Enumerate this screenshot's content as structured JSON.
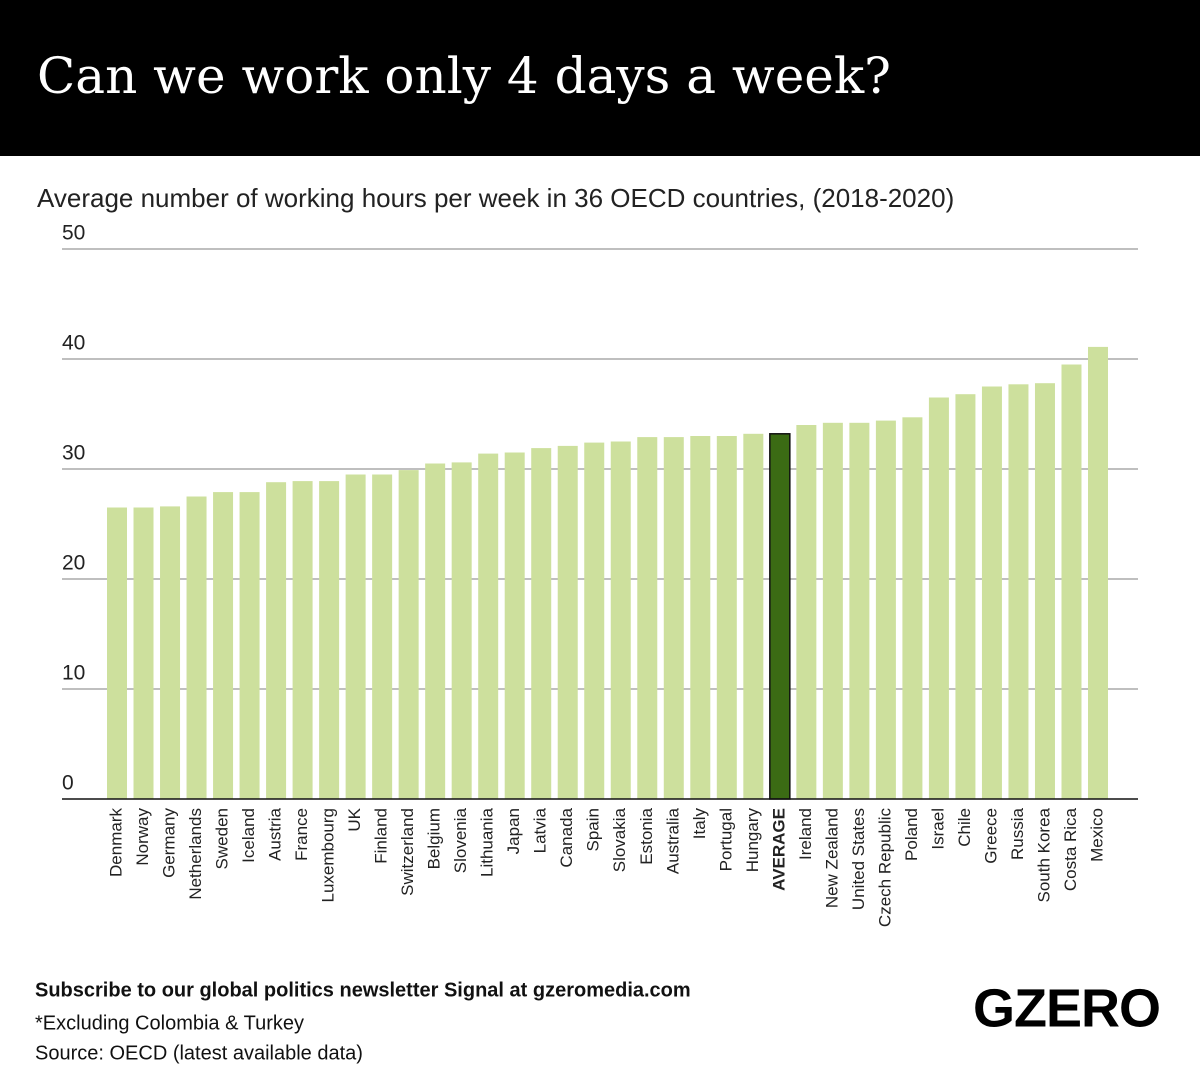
{
  "chart_data": {
    "type": "bar",
    "title": "Can we work only 4 days a week?",
    "subtitle": "Average number of working hours per week in 36 OECD countries, (2018-2020)",
    "categories": [
      "Denmark",
      "Norway",
      "Germany",
      "Netherlands",
      "Sweden",
      "Iceland",
      "Austria",
      "France",
      "Luxembourg",
      "UK",
      "Finland",
      "Switzerland",
      "Belgium",
      "Slovenia",
      "Lithuania",
      "Japan",
      "Latvia",
      "Canada",
      "Spain",
      "Slovakia",
      "Estonia",
      "Australia",
      "Italy",
      "Portugal",
      "Hungary",
      "AVERAGE",
      "Ireland",
      "New Zealand",
      "United States",
      "Czech Republic",
      "Poland",
      "Israel",
      "Chile",
      "Greece",
      "Russia",
      "South Korea",
      "Costa Rica",
      "Mexico"
    ],
    "values": [
      26.5,
      26.5,
      26.6,
      27.5,
      27.9,
      27.9,
      28.8,
      28.9,
      28.9,
      29.5,
      29.5,
      29.9,
      30.5,
      30.6,
      31.4,
      31.5,
      31.9,
      32.1,
      32.4,
      32.5,
      32.9,
      32.9,
      33.0,
      33.0,
      33.2,
      33.2,
      34.0,
      34.2,
      34.2,
      34.4,
      34.7,
      36.5,
      36.8,
      37.5,
      37.7,
      37.8,
      39.5,
      41.1
    ],
    "color": "#cde09d",
    "colors": [
      "#cde09d",
      "#cde09d",
      "#cde09d",
      "#cde09d",
      "#cde09d",
      "#cde09d",
      "#cde09d",
      "#cde09d",
      "#cde09d",
      "#cde09d",
      "#cde09d",
      "#cde09d",
      "#cde09d",
      "#cde09d",
      "#cde09d",
      "#cde09d",
      "#cde09d",
      "#cde09d",
      "#cde09d",
      "#cde09d",
      "#cde09d",
      "#cde09d",
      "#cde09d",
      "#cde09d",
      "#cde09d",
      "#3b6b14",
      "#cde09d",
      "#cde09d",
      "#cde09d",
      "#cde09d",
      "#cde09d",
      "#cde09d",
      "#cde09d",
      "#cde09d",
      "#cde09d",
      "#cde09d",
      "#cde09d",
      "#cde09d"
    ],
    "ylim": [
      0,
      50
    ],
    "yticks": [
      0,
      10,
      20,
      30,
      40,
      50
    ],
    "grid": true
  },
  "footer": {
    "subscribe": "Subscribe to our global politics newsletter Signal at gzeromedia.com",
    "note": "*Excluding Colombia & Turkey",
    "source": "Source: OECD (latest available data)",
    "logo": "GZERO"
  }
}
